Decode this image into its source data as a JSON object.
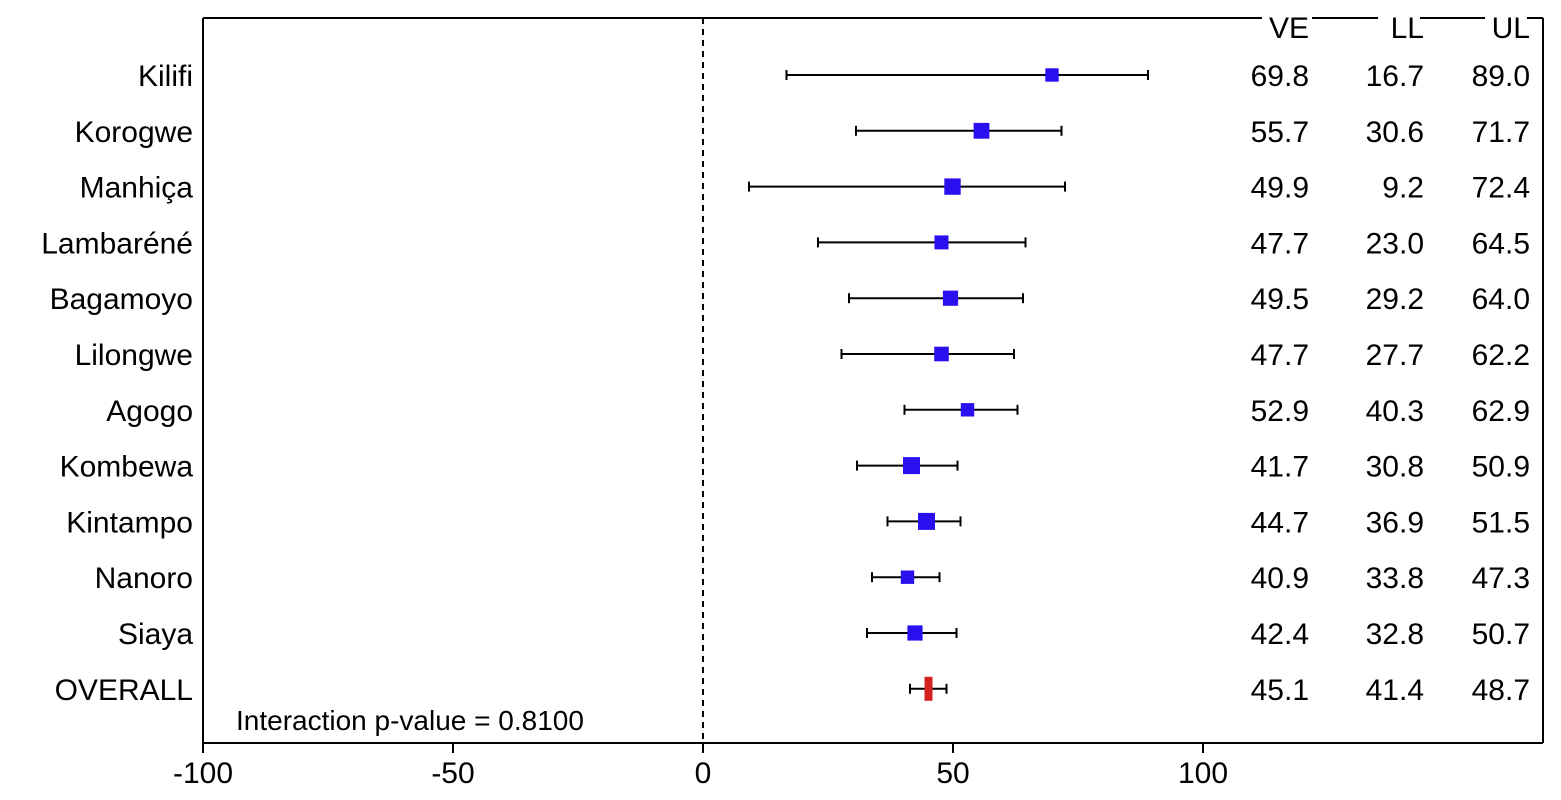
{
  "chart_data": {
    "type": "forest",
    "xlim": [
      -100,
      168
    ],
    "reference_line": 0,
    "x_ticks": [
      {
        "value": -100,
        "label": "-100"
      },
      {
        "value": -50,
        "label": "-50"
      },
      {
        "value": 0,
        "label": "0"
      },
      {
        "value": 50,
        "label": "50"
      },
      {
        "value": 100,
        "label": "100"
      }
    ],
    "columns": [
      {
        "key": "ve",
        "label": "VE"
      },
      {
        "key": "ll",
        "label": "LL"
      },
      {
        "key": "ul",
        "label": "UL"
      }
    ],
    "rows": [
      {
        "site": "Kilifi",
        "ve": 69.8,
        "ll": 16.7,
        "ul": 89.0,
        "ve_text": "69.8",
        "ll_text": "16.7",
        "ul_text": "89.0",
        "weight": 0.45
      },
      {
        "site": "Korogwe",
        "ve": 55.7,
        "ll": 30.6,
        "ul": 71.7,
        "ve_text": "55.7",
        "ll_text": "30.6",
        "ul_text": "71.7",
        "weight": 0.65
      },
      {
        "site": "Manhiça",
        "ve": 49.9,
        "ll": 9.2,
        "ul": 72.4,
        "ve_text": "49.9",
        "ll_text": "9.2",
        "ul_text": "72.4",
        "weight": 0.7
      },
      {
        "site": "Lambaréné",
        "ve": 47.7,
        "ll": 23.0,
        "ul": 64.5,
        "ve_text": "47.7",
        "ll_text": "23.0",
        "ul_text": "64.5",
        "weight": 0.5
      },
      {
        "site": "Bagamoyo",
        "ve": 49.5,
        "ll": 29.2,
        "ul": 64.0,
        "ve_text": "49.5",
        "ll_text": "29.2",
        "ul_text": "64.0",
        "weight": 0.6
      },
      {
        "site": "Lilongwe",
        "ve": 47.7,
        "ll": 27.7,
        "ul": 62.2,
        "ve_text": "47.7",
        "ll_text": "27.7",
        "ul_text": "62.2",
        "weight": 0.55
      },
      {
        "site": "Agogo",
        "ve": 52.9,
        "ll": 40.3,
        "ul": 62.9,
        "ve_text": "52.9",
        "ll_text": "40.3",
        "ul_text": "62.9",
        "weight": 0.45
      },
      {
        "site": "Kombewa",
        "ve": 41.7,
        "ll": 30.8,
        "ul": 50.9,
        "ve_text": "41.7",
        "ll_text": "30.8",
        "ul_text": "50.9",
        "weight": 0.75
      },
      {
        "site": "Kintampo",
        "ve": 44.7,
        "ll": 36.9,
        "ul": 51.5,
        "ve_text": "44.7",
        "ll_text": "36.9",
        "ul_text": "51.5",
        "weight": 0.75
      },
      {
        "site": "Nanoro",
        "ve": 40.9,
        "ll": 33.8,
        "ul": 47.3,
        "ve_text": "40.9",
        "ll_text": "33.8",
        "ul_text": "47.3",
        "weight": 0.45
      },
      {
        "site": "Siaya",
        "ve": 42.4,
        "ll": 32.8,
        "ul": 50.7,
        "ve_text": "42.4",
        "ll_text": "32.8",
        "ul_text": "50.7",
        "weight": 0.6
      },
      {
        "site": "OVERALL",
        "ve": 45.1,
        "ll": 41.4,
        "ul": 48.7,
        "ve_text": "45.1",
        "ll_text": "41.4",
        "ul_text": "48.7",
        "overall": true
      }
    ],
    "annotation": "Interaction p-value = 0.8100",
    "colors": {
      "point": "#2a10ee",
      "overall": "#d42020",
      "line": "#000000",
      "reference": "#000000"
    }
  }
}
